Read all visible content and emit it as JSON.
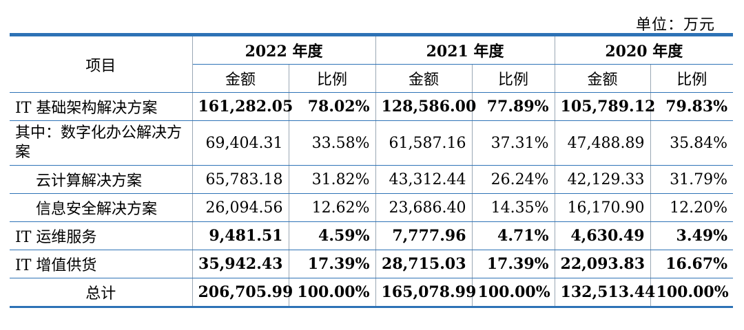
{
  "unit_label": "单位：万元",
  "header": {
    "item": "项目",
    "years": [
      "2022 年度",
      "2021 年度",
      "2020 年度"
    ],
    "amount": "金额",
    "ratio": "比例"
  },
  "rows": [
    {
      "label": "IT 基础架构解决方案",
      "values": [
        "161,282.05",
        "78.02%",
        "128,586.00",
        "77.89%",
        "105,789.12",
        "79.83%"
      ]
    },
    {
      "label": "其中：数字化办公解决方案",
      "values": [
        "69,404.31",
        "33.58%",
        "61,587.16",
        "37.31%",
        "47,488.89",
        "35.84%"
      ]
    },
    {
      "label": "云计算解决方案",
      "values": [
        "65,783.18",
        "31.82%",
        "43,312.44",
        "26.24%",
        "42,129.33",
        "31.79%"
      ]
    },
    {
      "label": "信息安全解决方案",
      "values": [
        "26,094.56",
        "12.62%",
        "23,686.40",
        "14.35%",
        "16,170.90",
        "12.20%"
      ]
    },
    {
      "label": "IT 运维服务",
      "values": [
        "9,481.51",
        "4.59%",
        "7,777.96",
        "4.71%",
        "4,630.49",
        "3.49%"
      ]
    },
    {
      "label": "IT 增值供货",
      "values": [
        "35,942.43",
        "17.39%",
        "28,715.03",
        "17.39%",
        "22,093.83",
        "16.67%"
      ]
    },
    {
      "label": "总计",
      "values": [
        "206,705.99",
        "100.00%",
        "165,078.99",
        "100.00%",
        "132,513.44",
        "100.00%"
      ]
    }
  ]
}
